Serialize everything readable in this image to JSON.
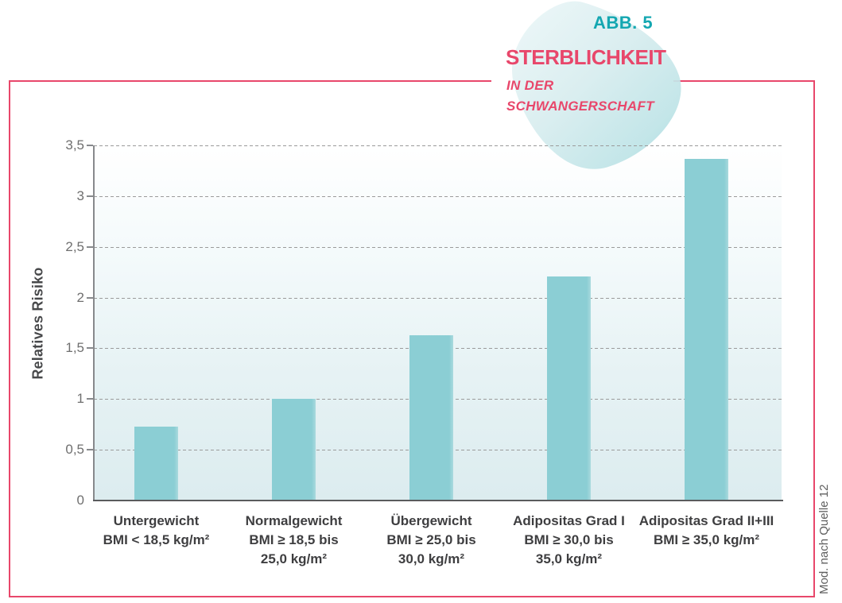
{
  "figure": {
    "fig_label": "ABB. 5",
    "title": "STERBLICHKEIT",
    "subtitle_line1": "IN DER",
    "subtitle_line2": "SCHWANGERSCHAFT"
  },
  "source_note": "Mod. nach Quelle 12",
  "colors": {
    "accent_pink": "#e8476b",
    "accent_teal": "#14a7b1",
    "bar_fill": "#8bced4",
    "frame_border": "#e8476b",
    "gridline": "#9b9b9b",
    "axis": "#87898c",
    "category_label": "#3e3e40",
    "tick_label": "#6f6f6f",
    "blob_light": "#e9f5f6",
    "blob_dark": "#a5dade"
  },
  "chart_data": {
    "type": "bar",
    "title": "STERBLICHKEIT IN DER SCHWANGERSCHAFT (ABB. 5)",
    "xlabel": "",
    "ylabel": "Relatives Risiko",
    "ylim": [
      0,
      3.5
    ],
    "ytick_values": [
      0,
      0.5,
      1,
      1.5,
      2,
      2.5,
      3,
      3.5
    ],
    "ytick_labels": [
      "0",
      "0,5",
      "1",
      "1,5",
      "2",
      "2,5",
      "3",
      "3,5"
    ],
    "grid": "horizontal dashed",
    "legend": "none",
    "categories": [
      [
        "Untergewicht",
        "BMI < 18,5 kg/m²"
      ],
      [
        "Normalgewicht",
        "BMI ≥ 18,5 bis",
        "25,0 kg/m²"
      ],
      [
        "Übergewicht",
        "BMI ≥ 25,0 bis",
        "30,0 kg/m²"
      ],
      [
        "Adipositas Grad I",
        "BMI ≥ 30,0 bis",
        "35,0 kg/m²"
      ],
      [
        "Adipositas Grad II+III",
        "BMI ≥ 35,0 kg/m²"
      ]
    ],
    "values": [
      0.73,
      1.0,
      1.63,
      2.21,
      3.37
    ]
  }
}
